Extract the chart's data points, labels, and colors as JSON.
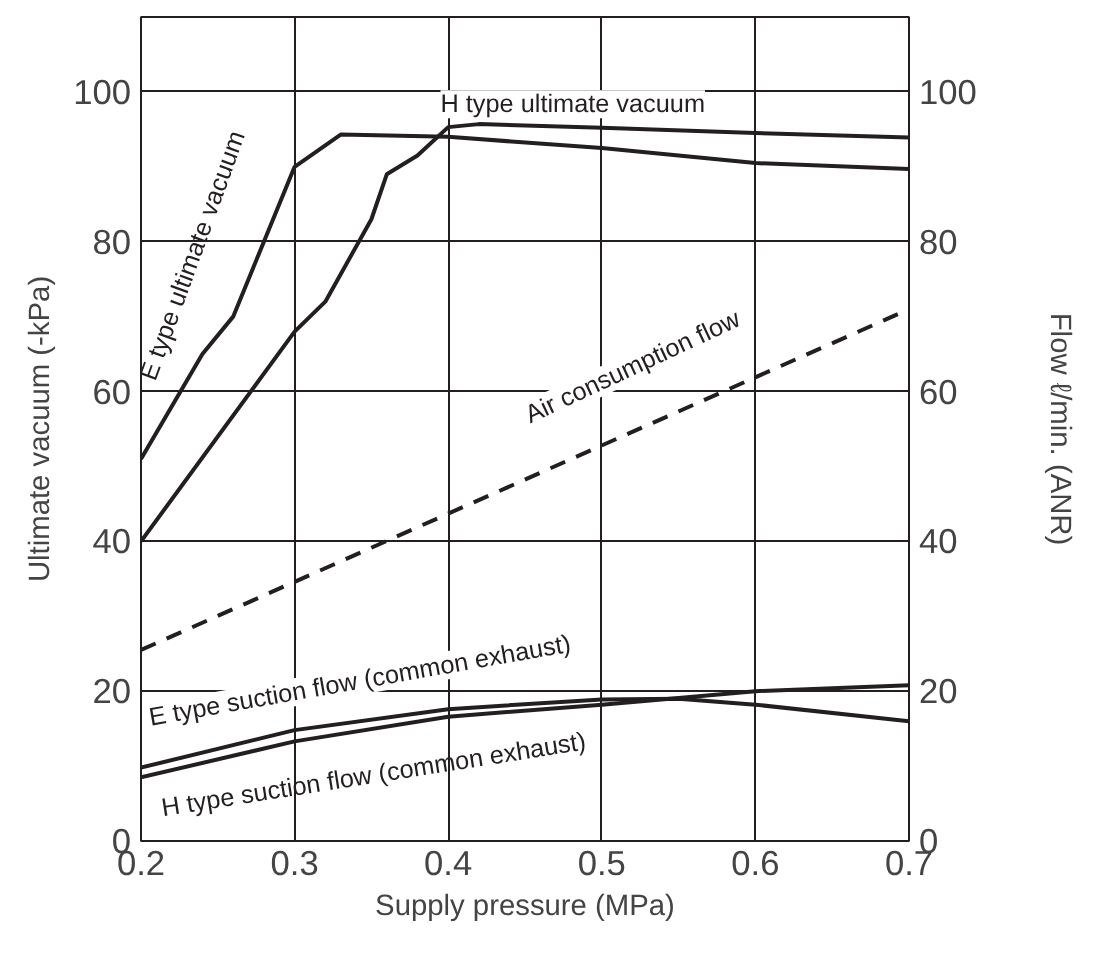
{
  "chart_data": {
    "type": "line",
    "xlabel": "Supply pressure (MPa)",
    "ylabel": "Ultimate vacuum (-kPa)",
    "y2label": "Flow ℓ/min. (ANR)",
    "xlim": [
      0.2,
      0.7
    ],
    "xticks": [
      0.2,
      0.3,
      0.4,
      0.5,
      0.6,
      0.7
    ],
    "ylim": [
      0,
      110
    ],
    "yticks": [
      0,
      20,
      40,
      60,
      80,
      100
    ],
    "y2lim": [
      0,
      110
    ],
    "y2ticks": [
      0,
      20,
      40,
      60,
      80,
      100
    ],
    "grid": true,
    "marker": "none",
    "series": [
      {
        "name": "E type ultimate vacuum",
        "color": "#231f20",
        "x": [
          0.2,
          0.24,
          0.26,
          0.28,
          0.3,
          0.33,
          0.4,
          0.5,
          0.6,
          0.7
        ],
        "values": [
          51,
          65,
          70,
          80,
          90,
          94.3,
          94,
          92.5,
          90.5,
          89.7
        ]
      },
      {
        "name": "H type ultimate vacuum",
        "color": "#231f20",
        "x": [
          0.2,
          0.3,
          0.32,
          0.35,
          0.36,
          0.38,
          0.4,
          0.42,
          0.5,
          0.6,
          0.7
        ],
        "values": [
          40,
          68,
          72,
          83,
          89,
          91.5,
          95.3,
          95.7,
          95.2,
          94.5,
          93.9
        ]
      },
      {
        "name": "Air consumption flow",
        "color": "#231f20",
        "line_style": "dashed",
        "x": [
          0.2,
          0.7
        ],
        "values": [
          25.5,
          71
        ]
      },
      {
        "name": "E type suction flow (common exhaust)",
        "color": "#231f20",
        "x": [
          0.2,
          0.3,
          0.4,
          0.5,
          0.55,
          0.6,
          0.7
        ],
        "values": [
          9.8,
          14.8,
          17.6,
          18.9,
          19,
          18.2,
          16
        ]
      },
      {
        "name": "H type suction flow (common exhaust)",
        "color": "#231f20",
        "x": [
          0.2,
          0.3,
          0.4,
          0.5,
          0.6,
          0.7
        ],
        "values": [
          8.5,
          13.3,
          16.6,
          18.2,
          20,
          20.8
        ]
      }
    ]
  }
}
